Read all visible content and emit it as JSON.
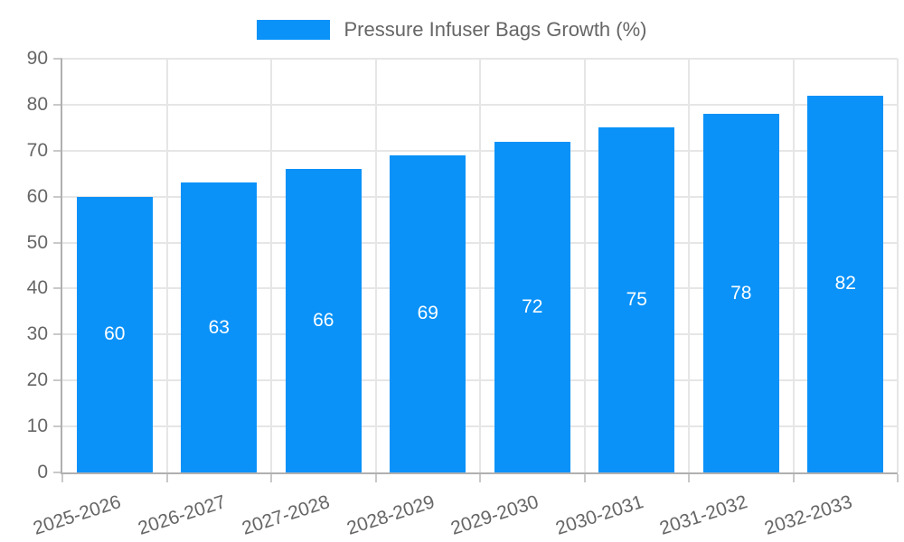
{
  "chart_data": {
    "type": "bar",
    "legend": {
      "label": "Pressure Infuser Bags Growth (%)",
      "position": "top"
    },
    "categories": [
      "2025-2026",
      "2026-2027",
      "2027-2028",
      "2028-2029",
      "2029-2030",
      "2030-2031",
      "2031-2032",
      "2032-2033"
    ],
    "values": [
      60,
      63,
      66,
      69,
      72,
      75,
      78,
      82
    ],
    "value_labels_shown": true,
    "xlabel": "",
    "ylabel": "",
    "ylim": [
      0,
      90
    ],
    "yticks": [
      0,
      10,
      20,
      30,
      40,
      50,
      60,
      70,
      80,
      90
    ],
    "grid": true,
    "x_label_rotation_deg": -18,
    "colors": {
      "bar": "#0A92F8",
      "value_label": "#FFFFFF",
      "axis_text": "#666666",
      "gridline": "#E6E6E6",
      "tick": "#C9C9C9",
      "axis_line": "#B0B0B0",
      "background": "#FFFFFF"
    }
  }
}
